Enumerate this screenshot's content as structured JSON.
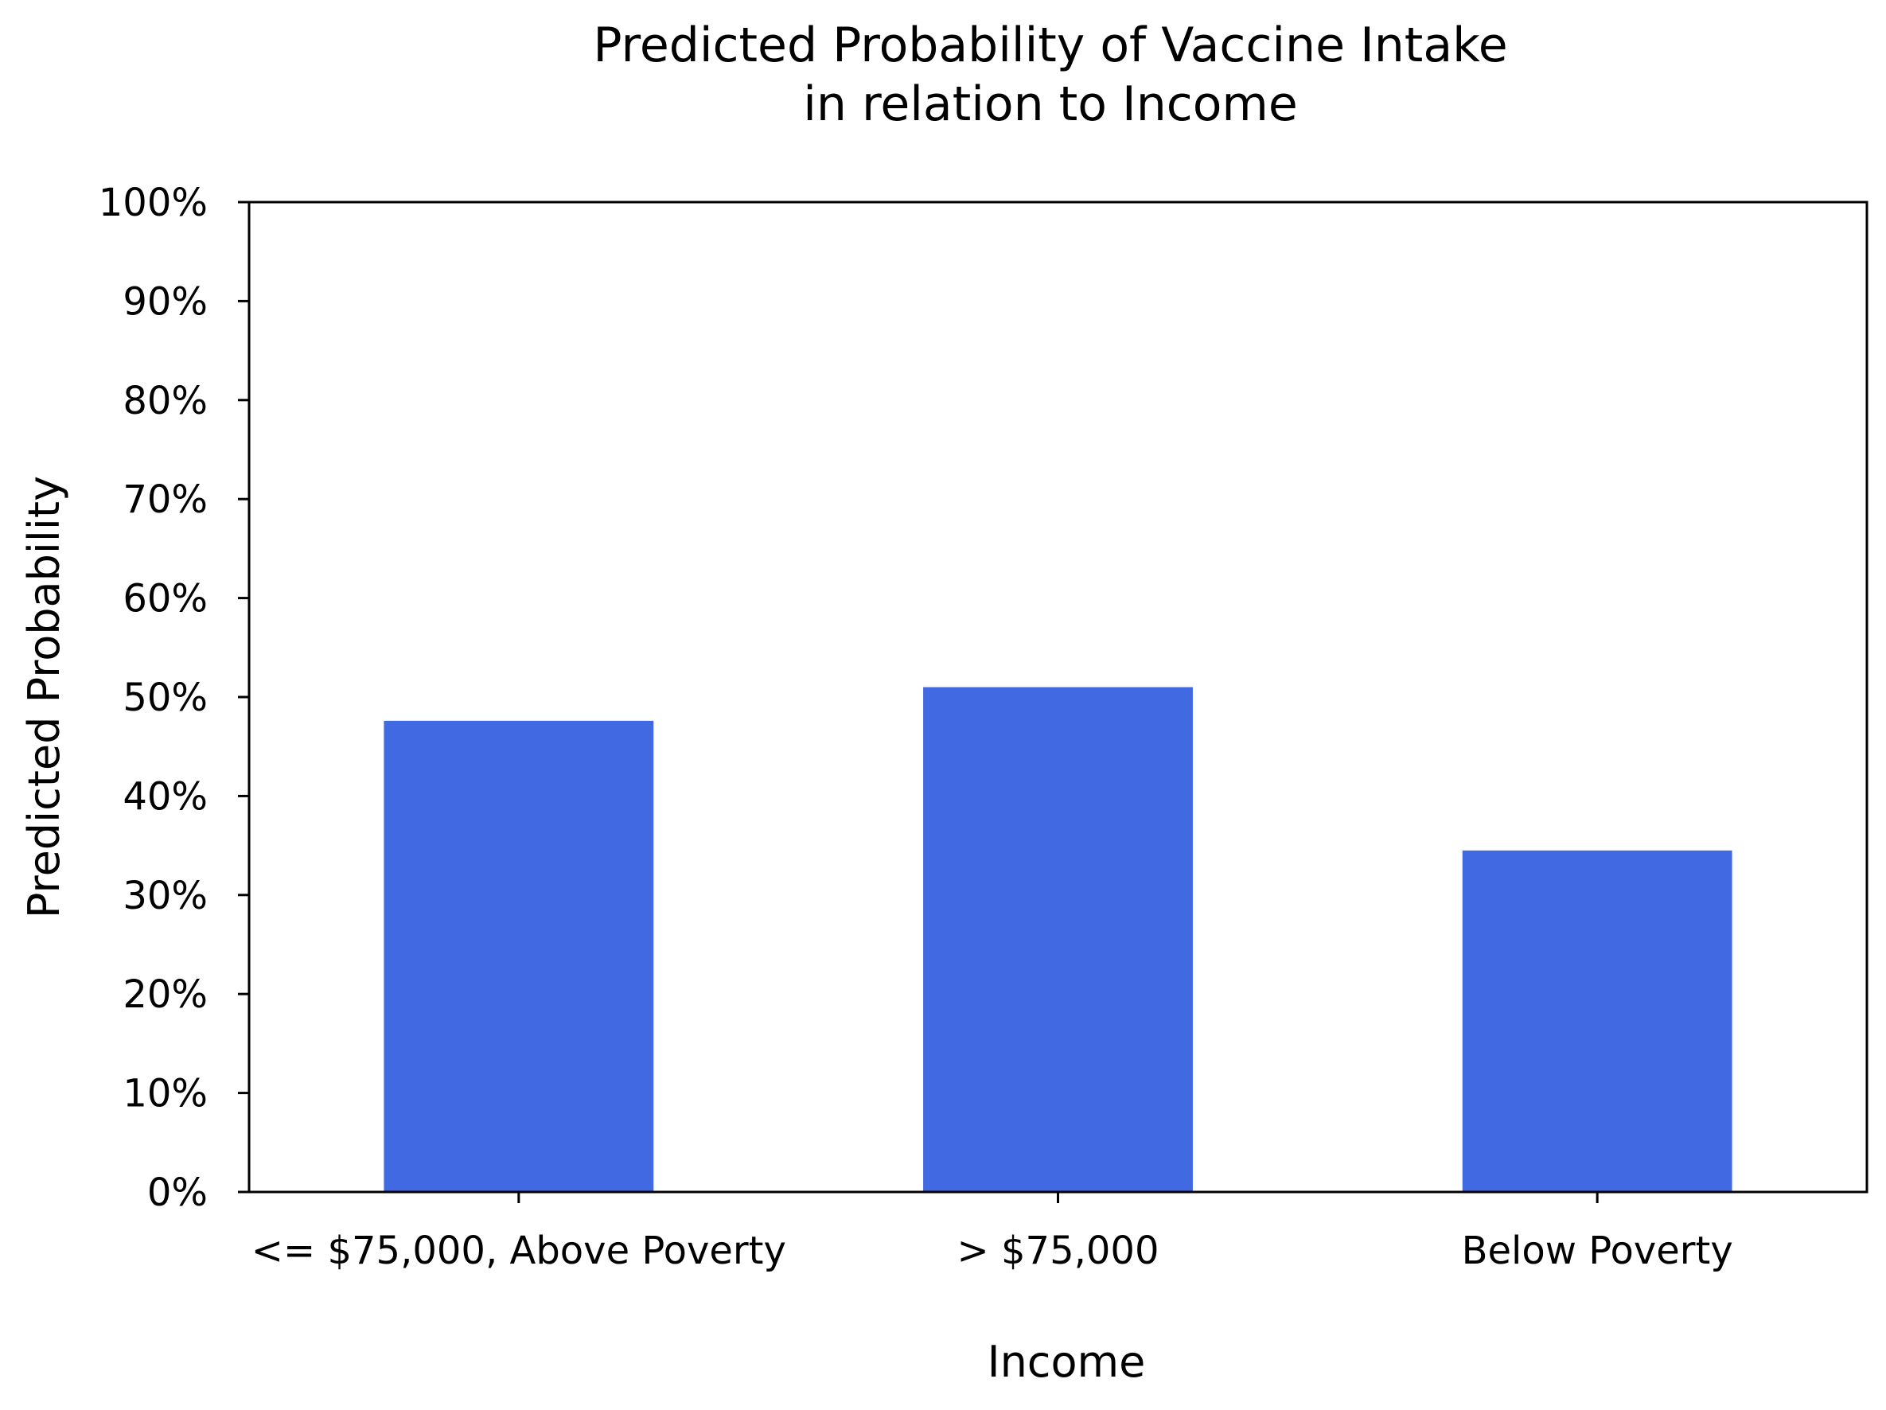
{
  "chart_data": {
    "type": "bar",
    "title": [
      "Predicted Probability of Vaccine Intake",
      "in relation to Income"
    ],
    "xlabel": "Income",
    "ylabel": "Predicted Probability",
    "categories": [
      "<= $75,000, Above Poverty",
      "> $75,000",
      "Below Poverty"
    ],
    "values": [
      0.476,
      0.51,
      0.345
    ],
    "ylim": [
      0,
      1
    ],
    "yticks": [
      0,
      0.1,
      0.2,
      0.3,
      0.4,
      0.5,
      0.6,
      0.7,
      0.8,
      0.9,
      1.0
    ],
    "ytick_labels": [
      "0%",
      "10%",
      "20%",
      "30%",
      "40%",
      "50%",
      "60%",
      "70%",
      "80%",
      "90%",
      "100%"
    ],
    "grid": false,
    "bar_color": "#4169e1"
  }
}
